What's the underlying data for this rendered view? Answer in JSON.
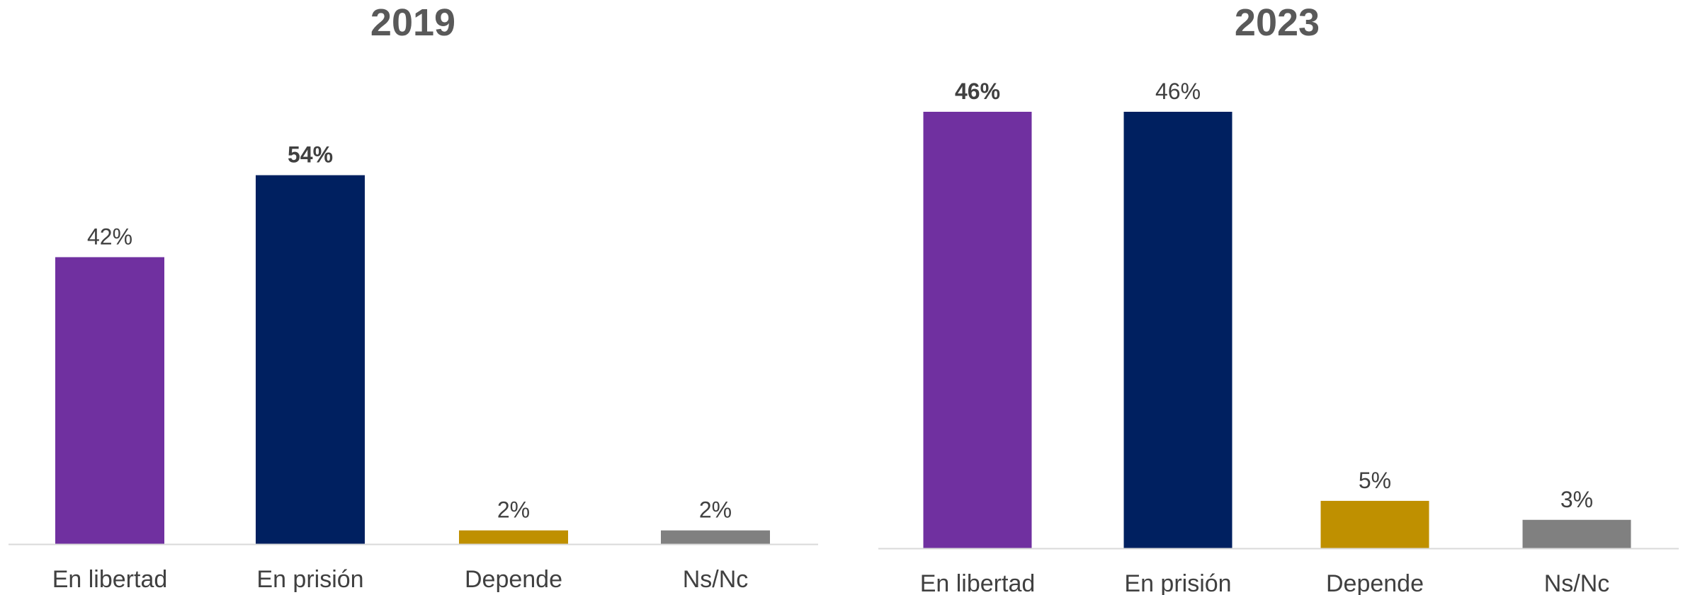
{
  "chart_data": [
    {
      "type": "bar",
      "title": "2019",
      "categories": [
        "En libertad",
        "En prisión",
        "Depende",
        "Ns/Nc"
      ],
      "values": [
        42,
        54,
        2,
        2
      ],
      "data_labels": [
        "42%",
        "54%",
        "2%",
        "2%"
      ],
      "bold_labels": [
        false,
        true,
        false,
        false
      ],
      "colors": [
        "#7030A0",
        "#002060",
        "#BF9000",
        "#808080"
      ],
      "ylim": [
        0,
        58
      ],
      "grid": false,
      "legend": "none"
    },
    {
      "type": "bar",
      "title": "2023",
      "categories": [
        "En libertad",
        "En prisión",
        "Depende",
        "Ns/Nc"
      ],
      "values": [
        46,
        46,
        5,
        3
      ],
      "data_labels": [
        "46%",
        "46%",
        "5%",
        "3%"
      ],
      "bold_labels": [
        true,
        false,
        false,
        false
      ],
      "colors": [
        "#7030A0",
        "#002060",
        "#BF9000",
        "#808080"
      ],
      "ylim": [
        0,
        46
      ],
      "grid": false,
      "legend": "none"
    }
  ]
}
